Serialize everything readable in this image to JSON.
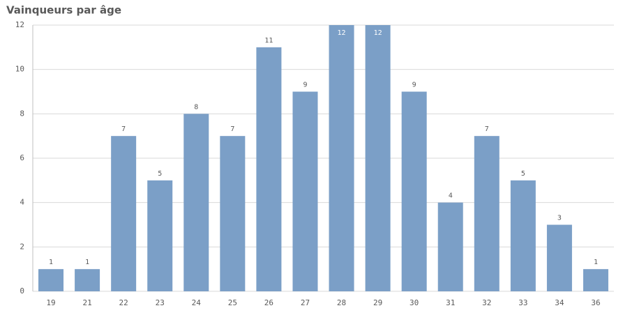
{
  "chart_data": {
    "type": "bar",
    "title": "Vainqueurs par âge",
    "categories": [
      "19",
      "21",
      "22",
      "23",
      "24",
      "25",
      "26",
      "27",
      "28",
      "29",
      "30",
      "31",
      "32",
      "33",
      "34",
      "36"
    ],
    "values": [
      1,
      1,
      7,
      5,
      8,
      7,
      11,
      9,
      12,
      12,
      9,
      4,
      7,
      5,
      3,
      1
    ],
    "color": "#7b9fc7",
    "ylim": [
      0,
      12
    ],
    "yticks": [
      0,
      2,
      4,
      6,
      8,
      10,
      12
    ],
    "grid": true
  }
}
